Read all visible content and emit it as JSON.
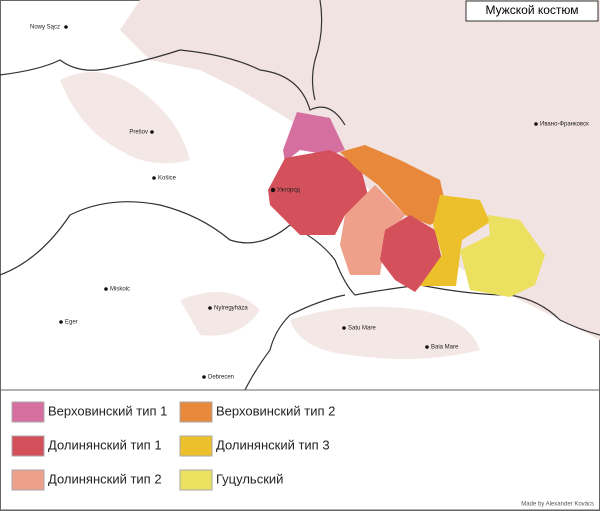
{
  "title": "Мужской костюм",
  "cities": [
    {
      "label": "Nowy Sącz"
    },
    {
      "label": "Prešov"
    },
    {
      "label": "Košice"
    },
    {
      "label": "Ужгород"
    },
    {
      "label": "Miskolc"
    },
    {
      "label": "Nyíregyháza"
    },
    {
      "label": "Eger"
    },
    {
      "label": "Satu Mare"
    },
    {
      "label": "Baia Mare"
    },
    {
      "label": "Debrecen"
    },
    {
      "label": "Ивано-Франковск"
    }
  ],
  "legend": [
    {
      "label": "Верховинский тип 1",
      "color": "#d46fa0"
    },
    {
      "label": "Верховинский тип 2",
      "color": "#e8883a"
    },
    {
      "label": "Долинянский тип 1",
      "color": "#d4505a"
    },
    {
      "label": "Долинянский тип 3",
      "color": "#ecc02a"
    },
    {
      "label": "Долинянский тип 2",
      "color": "#eea08a"
    },
    {
      "label": "Гуцульский",
      "color": "#ece060"
    }
  ],
  "credit": "Made by Alexander Kovács"
}
